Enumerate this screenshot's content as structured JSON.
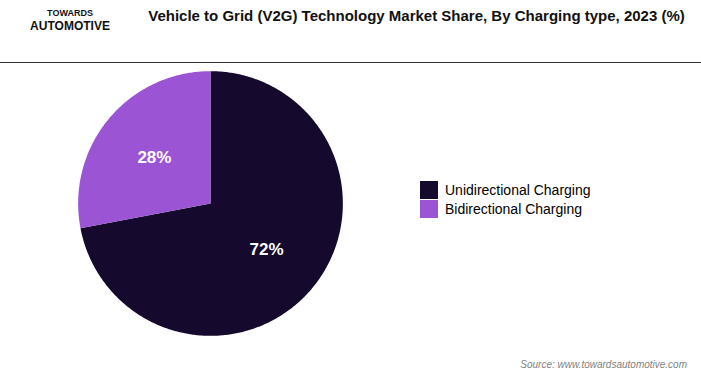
{
  "chart_data": {
    "type": "pie",
    "title": "Vehicle to Grid (V2G) Technology Market Share, By Charging type, 2023 (%)",
    "categories": [
      "Unidirectional Charging",
      "Bidirectional Charging"
    ],
    "values": [
      72,
      28
    ],
    "value_labels": [
      "72%",
      "28%"
    ],
    "colors": [
      "#150a2e",
      "#9b55d4"
    ],
    "data_labels": true,
    "legend": "right",
    "annotations": [
      "TOWARDS",
      "AUTOMOTIVE",
      "Source: www.towardsautomotive.com"
    ]
  }
}
